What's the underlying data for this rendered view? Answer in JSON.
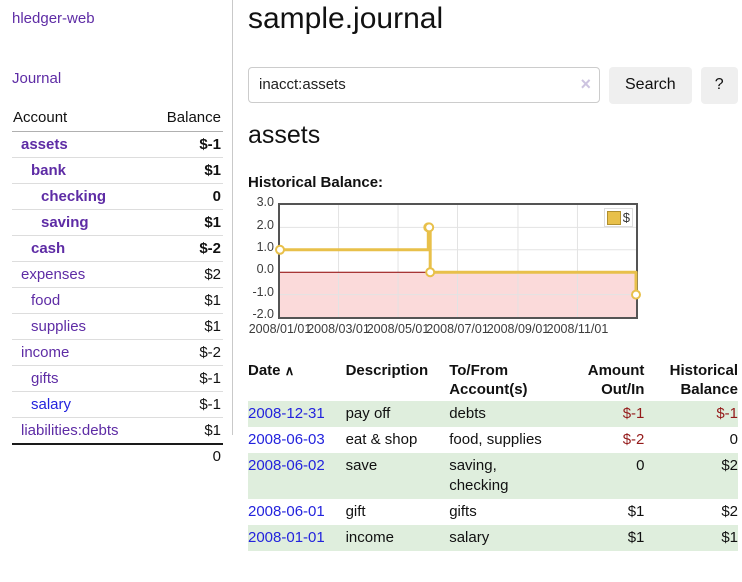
{
  "app": {
    "brand": "hledger-web"
  },
  "sidebar": {
    "journal_link": "Journal",
    "accounts": {
      "col_account": "Account",
      "col_balance": "Balance",
      "rows": [
        {
          "name": "assets",
          "indent": 0,
          "bold": true,
          "link": "purple",
          "balance": "$-1",
          "bal_class": "neg-strong"
        },
        {
          "name": "bank",
          "indent": 1,
          "bold": true,
          "link": "purple",
          "balance": "$1",
          "bal_class": ""
        },
        {
          "name": "checking",
          "indent": 2,
          "bold": true,
          "link": "purple",
          "balance": "0",
          "bal_class": ""
        },
        {
          "name": "saving",
          "indent": 2,
          "bold": true,
          "link": "purple",
          "balance": "$1",
          "bal_class": ""
        },
        {
          "name": "cash",
          "indent": 1,
          "bold": true,
          "link": "purple",
          "balance": "$-2",
          "bal_class": "neg-strong"
        },
        {
          "name": "expenses",
          "indent": 0,
          "bold": false,
          "link": "purple",
          "balance": "$2",
          "bal_class": ""
        },
        {
          "name": "food",
          "indent": 1,
          "bold": false,
          "link": "purple",
          "balance": "$1",
          "bal_class": ""
        },
        {
          "name": "supplies",
          "indent": 1,
          "bold": false,
          "link": "purple",
          "balance": "$1",
          "bal_class": ""
        },
        {
          "name": "income",
          "indent": 0,
          "bold": false,
          "link": "purple",
          "balance": "$-2",
          "bal_class": "neg-muted"
        },
        {
          "name": "gifts",
          "indent": 1,
          "bold": false,
          "link": "purple",
          "balance": "$-1",
          "bal_class": "neg-muted"
        },
        {
          "name": "salary",
          "indent": 1,
          "bold": false,
          "link": "blue",
          "balance": "$-1",
          "bal_class": "neg-muted"
        },
        {
          "name": "liabilities:debts",
          "indent": 0,
          "bold": false,
          "link": "purple",
          "balance": "$1",
          "bal_class": ""
        }
      ],
      "total": "0"
    }
  },
  "main": {
    "title": "sample.journal",
    "search": {
      "value": "inacct:assets",
      "clear_icon": "×",
      "button": "Search",
      "help": "?"
    },
    "account_heading": "assets",
    "section_label": "Historical Balance:"
  },
  "chart_data": {
    "type": "line",
    "style": "steps",
    "title": "Historical Balance",
    "series": [
      {
        "name": "$",
        "color": "#e8c04a",
        "points": [
          [
            "2008-01-01",
            1
          ],
          [
            "2008-06-01",
            2
          ],
          [
            "2008-06-02",
            2
          ],
          [
            "2008-06-03",
            0
          ],
          [
            "2008-12-31",
            -1
          ]
        ]
      }
    ],
    "x_range": [
      "2008-01-01",
      "2008-12-31"
    ],
    "y_range": [
      -2,
      3
    ],
    "y_ticks": [
      3,
      2,
      1,
      0,
      -1,
      -2
    ],
    "y_tick_labels": [
      "3.0",
      "2.0",
      "1.0",
      "0.0",
      "-1.0",
      "-2.0"
    ],
    "x_tick_labels": [
      "2008/01/01",
      "2008/03/01",
      "2008/05/01",
      "2008/07/01",
      "2008/09/01",
      "2008/11/01"
    ],
    "grid": true,
    "legend": [
      {
        "label": "$",
        "color": "#e8c04a"
      }
    ],
    "legend_position": "top-right",
    "zero_line_color": "#8b0000",
    "negative_region_color": "#fbdada"
  },
  "register": {
    "headers": {
      "date": "Date",
      "sort_icon": "∧",
      "description": "Description",
      "accounts": "To/From Account(s)",
      "amount": "Amount Out/In",
      "balance": "Historical Balance"
    },
    "rows": [
      {
        "date": "2008-12-31",
        "description": "pay off",
        "accounts": "debts",
        "amount": "$-1",
        "amount_class": "neg",
        "balance": "$-1",
        "balance_class": "neg"
      },
      {
        "date": "2008-06-03",
        "description": "eat & shop",
        "accounts": "food, supplies",
        "amount": "$-2",
        "amount_class": "neg",
        "balance": "0",
        "balance_class": ""
      },
      {
        "date": "2008-06-02",
        "description": "save",
        "accounts": "saving,\nchecking",
        "amount": "0",
        "amount_class": "",
        "balance": "$2",
        "balance_class": ""
      },
      {
        "date": "2008-06-01",
        "description": "gift",
        "accounts": "gifts",
        "amount": "$1",
        "amount_class": "",
        "balance": "$2",
        "balance_class": ""
      },
      {
        "date": "2008-01-01",
        "description": "income",
        "accounts": "salary",
        "amount": "$1",
        "amount_class": "",
        "balance": "$1",
        "balance_class": ""
      }
    ]
  }
}
